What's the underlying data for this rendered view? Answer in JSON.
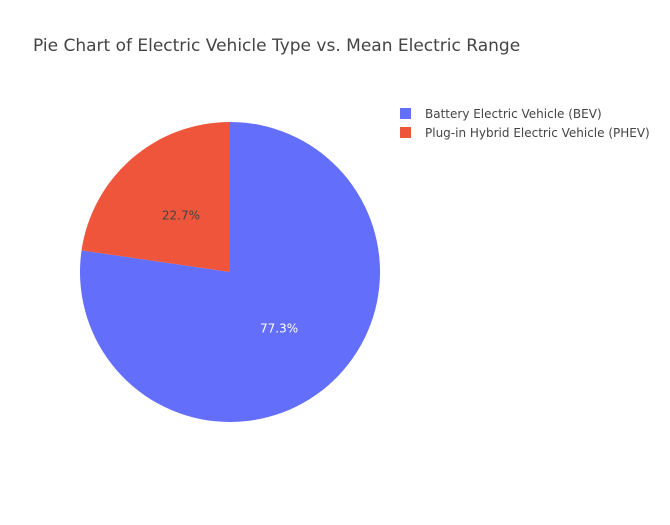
{
  "chart_data": {
    "type": "pie",
    "title": "Pie Chart of Electric Vehicle Type vs. Mean Electric Range",
    "labels": [
      "Battery Electric Vehicle (BEV)",
      "Plug-in Hybrid Electric Vehicle (PHEV)"
    ],
    "values": [
      77.3,
      22.7
    ],
    "slice_labels": [
      "77.3%",
      "22.7%"
    ],
    "colors": [
      "#636efa",
      "#ef553b"
    ],
    "label_colors": [
      "#ffffff",
      "#444444"
    ],
    "legend": {
      "position": "top-right"
    }
  }
}
